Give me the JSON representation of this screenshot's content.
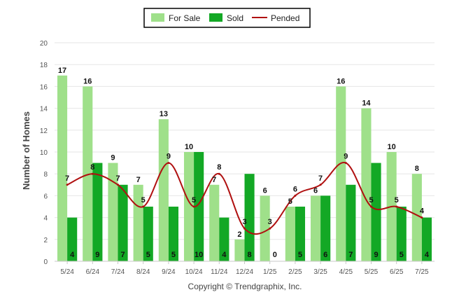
{
  "colors": {
    "for_sale": "#9fe08a",
    "sold": "#13a825",
    "pended": "#b01010"
  },
  "legend": {
    "for_sale": "For Sale",
    "sold": "Sold",
    "pended": "Pended"
  },
  "footer": "Copyright © Trendgraphix, Inc.",
  "chart_data": {
    "type": "bar",
    "ylabel": "Number of Homes",
    "ylim": [
      0,
      20
    ],
    "yticks": [
      0,
      2,
      4,
      6,
      8,
      10,
      12,
      14,
      16,
      18,
      20
    ],
    "grid": true,
    "legend_position": "top-center",
    "categories": [
      "5/24",
      "6/24",
      "7/24",
      "8/24",
      "9/24",
      "10/24",
      "11/24",
      "12/24",
      "1/25",
      "2/25",
      "3/25",
      "4/25",
      "5/25",
      "6/25",
      "7/25"
    ],
    "series": [
      {
        "name": "For Sale",
        "type": "bar",
        "values": [
          17,
          16,
          9,
          7,
          13,
          10,
          7,
          2,
          6,
          5,
          6,
          16,
          14,
          10,
          8
        ]
      },
      {
        "name": "Sold",
        "type": "bar",
        "values": [
          4,
          9,
          7,
          5,
          5,
          10,
          4,
          8,
          0,
          5,
          6,
          7,
          9,
          5,
          4
        ]
      },
      {
        "name": "Pended",
        "type": "line",
        "values": [
          7,
          8,
          7,
          5,
          9,
          5,
          8,
          3,
          3,
          6,
          7,
          9,
          5,
          5,
          4
        ]
      }
    ]
  }
}
